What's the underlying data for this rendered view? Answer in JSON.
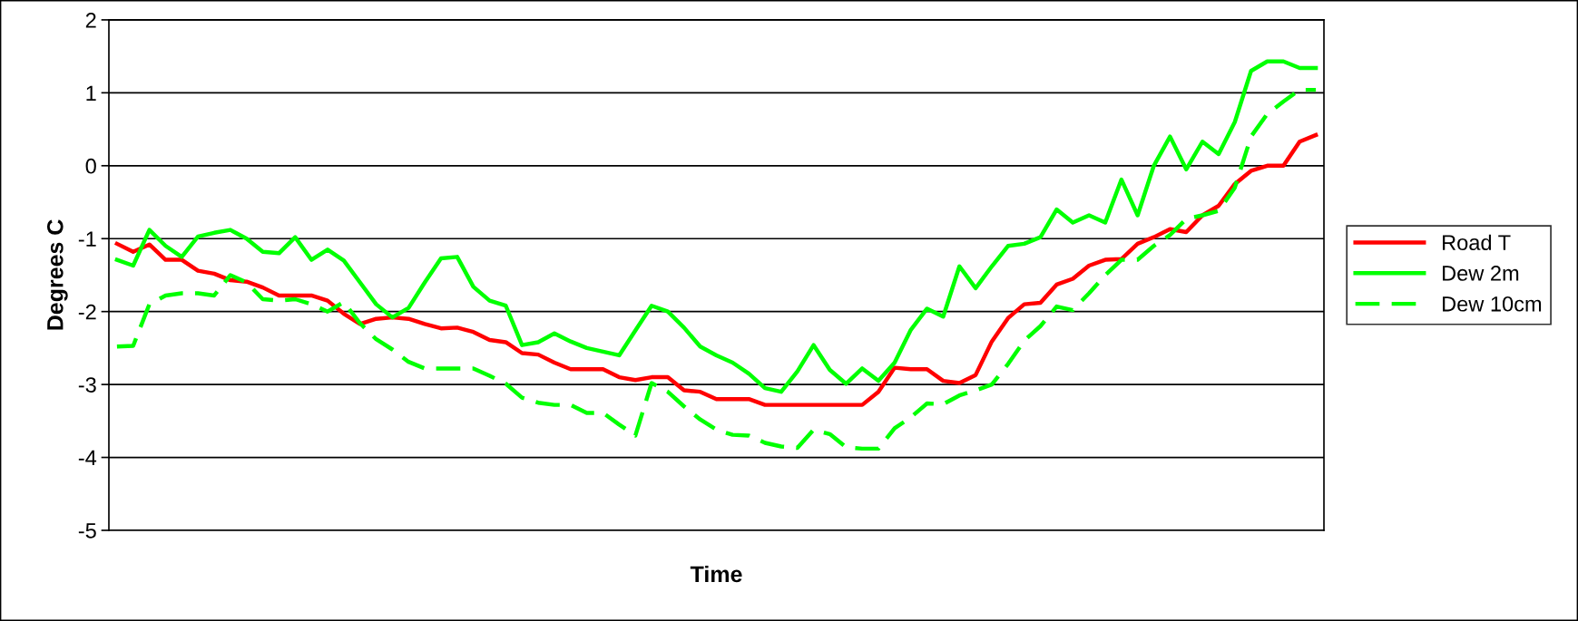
{
  "chart_data": {
    "type": "line",
    "xlabel": "Time",
    "ylabel": "Degrees C",
    "categories": [
      null,
      null,
      null,
      null,
      null,
      null,
      null,
      null,
      null,
      null,
      null,
      null,
      null,
      null,
      null,
      null,
      null,
      null,
      null,
      null,
      null,
      null,
      null,
      null,
      null,
      null,
      null,
      null,
      null,
      null,
      null,
      null,
      null,
      null,
      null,
      null,
      null,
      null,
      null,
      null,
      null,
      null,
      null,
      null,
      null,
      null,
      null,
      null,
      null,
      null,
      null,
      null,
      null,
      null,
      null,
      null,
      null,
      null,
      null,
      null,
      null,
      null,
      null,
      null,
      null,
      null,
      null,
      null,
      null,
      null,
      null,
      null,
      null,
      null,
      null
    ],
    "series": [
      {
        "name": "Road T",
        "color": "#ff0000",
        "line_style": "solid",
        "values": [
          -1.07,
          -1.18,
          -1.08,
          -1.29,
          -1.29,
          -1.44,
          -1.48,
          -1.57,
          -1.59,
          -1.67,
          -1.78,
          -1.78,
          -1.78,
          -1.85,
          -2.03,
          -2.17,
          -2.1,
          -2.08,
          -2.1,
          -2.17,
          -2.23,
          -2.22,
          -2.28,
          -2.39,
          -2.42,
          -2.57,
          -2.59,
          -2.7,
          -2.79,
          -2.79,
          -2.79,
          -2.9,
          -2.94,
          -2.9,
          -2.9,
          -3.08,
          -3.1,
          -3.2,
          -3.2,
          -3.2,
          -3.28,
          -3.28,
          -3.28,
          -3.28,
          -3.28,
          -3.28,
          -3.28,
          -3.1,
          -2.77,
          -2.79,
          -2.79,
          -2.95,
          -2.98,
          -2.87,
          -2.41,
          -2.09,
          -1.9,
          -1.88,
          -1.63,
          -1.55,
          -1.37,
          -1.29,
          -1.28,
          -1.07,
          -0.98,
          -0.87,
          -0.91,
          -0.68,
          -0.55,
          -0.25,
          -0.07,
          0.0,
          0.0,
          0.33,
          0.42
        ]
      },
      {
        "name": "Dew 2m",
        "color": "#00ff00",
        "line_style": "solid",
        "values": [
          -1.29,
          -1.37,
          -0.88,
          -1.1,
          -1.25,
          -0.97,
          -0.92,
          -0.88,
          -1.0,
          -1.18,
          -1.2,
          -0.98,
          -1.29,
          -1.15,
          -1.3,
          -1.6,
          -1.9,
          -2.08,
          -1.95,
          -1.6,
          -1.27,
          -1.25,
          -1.66,
          -1.85,
          -1.92,
          -2.46,
          -2.42,
          -2.3,
          -2.41,
          -2.5,
          -2.55,
          -2.6,
          -2.26,
          -1.92,
          -2.0,
          -2.22,
          -2.48,
          -2.6,
          -2.7,
          -2.85,
          -3.05,
          -3.1,
          -2.82,
          -2.46,
          -2.8,
          -2.99,
          -2.78,
          -2.95,
          -2.7,
          -2.25,
          -1.96,
          -2.07,
          -1.38,
          -1.68,
          -1.38,
          -1.1,
          -1.07,
          -0.98,
          -0.6,
          -0.78,
          -0.68,
          -0.78,
          -0.19,
          -0.68,
          0.0,
          0.4,
          -0.05,
          0.33,
          0.16,
          0.6,
          1.3,
          1.43,
          1.43,
          1.34,
          1.34
        ]
      },
      {
        "name": "Dew 10cm",
        "color": "#00ff00",
        "line_style": "dashed",
        "values": [
          -2.48,
          -2.47,
          -1.9,
          -1.78,
          -1.75,
          -1.75,
          -1.78,
          -1.5,
          -1.6,
          -1.83,
          -1.85,
          -1.83,
          -1.9,
          -2.0,
          -1.87,
          -2.16,
          -2.38,
          -2.52,
          -2.69,
          -2.78,
          -2.78,
          -2.78,
          -2.78,
          -2.88,
          -2.99,
          -3.18,
          -3.25,
          -3.28,
          -3.28,
          -3.39,
          -3.39,
          -3.55,
          -3.7,
          -2.98,
          -3.1,
          -3.3,
          -3.48,
          -3.62,
          -3.69,
          -3.7,
          -3.8,
          -3.85,
          -3.87,
          -3.62,
          -3.68,
          -3.86,
          -3.88,
          -3.88,
          -3.6,
          -3.45,
          -3.26,
          -3.27,
          -3.15,
          -3.08,
          -3.0,
          -2.72,
          -2.4,
          -2.2,
          -1.93,
          -1.98,
          -1.75,
          -1.5,
          -1.29,
          -1.29,
          -1.1,
          -0.95,
          -0.73,
          -0.68,
          -0.62,
          -0.3,
          0.4,
          0.71,
          0.88,
          1.04,
          1.04
        ]
      }
    ],
    "ylim": [
      -5,
      2
    ],
    "yticks": [
      -5,
      -4,
      -3,
      -2,
      -1,
      0,
      1,
      2
    ],
    "grid": "y",
    "legend": "right",
    "tick_labels": "y",
    "marker": "none"
  }
}
